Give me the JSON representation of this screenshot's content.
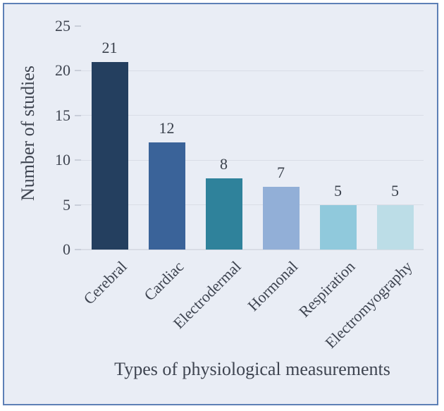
{
  "chart_data": {
    "type": "bar",
    "categories": [
      "Cerebral",
      "Cardiac",
      "Electrodermal",
      "Hormonal",
      "Respiration",
      "Electromyography"
    ],
    "values": [
      21,
      12,
      8,
      7,
      5,
      5
    ],
    "bar_colors": [
      "#243f5f",
      "#3a6399",
      "#2f829b",
      "#92afd7",
      "#90c9dc",
      "#bcdde7"
    ],
    "title": "",
    "xlabel": "Types of physiological measurements",
    "ylabel": "Number of studies",
    "yticks": [
      0,
      5,
      10,
      15,
      20,
      25
    ],
    "ylim": [
      0,
      25
    ],
    "grid": true,
    "legend": false,
    "value_labels": [
      "21",
      "12",
      "8",
      "7",
      "5",
      "5"
    ],
    "ytick_labels": [
      "0",
      "5",
      "10",
      "15",
      "20",
      "25"
    ]
  },
  "style": {
    "frame_border_color": "#5d80b6",
    "chart_background": "#e9edf5",
    "gridline_color": "#d9dde6",
    "text_color": "#3e4450"
  }
}
